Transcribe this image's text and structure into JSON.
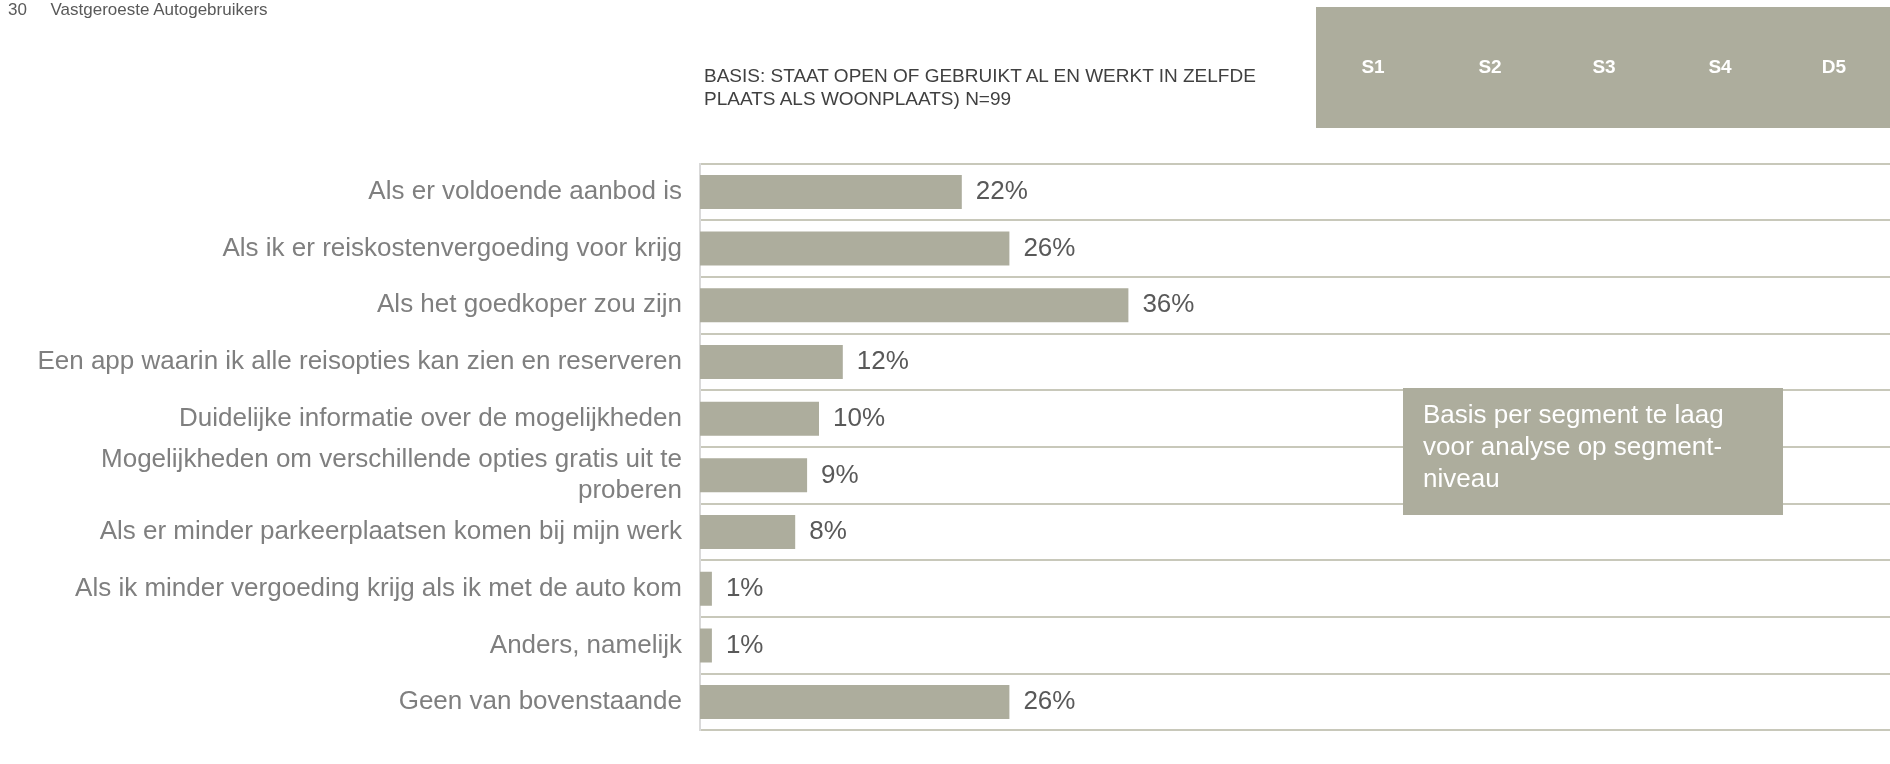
{
  "chart_data": {
    "type": "bar",
    "orientation": "horizontal",
    "title": "Vastgeroeste Autogebruikers",
    "subtitle": "BASIS: STAAT OPEN OF GEBRUIKT AL EN WERKT IN ZELFDE PLAATS ALS WOONPLAATS) N=99",
    "annotations": [
      "30",
      "S1",
      "S2",
      "S3",
      "S4",
      "D5",
      "Basis per segment te laag voor analyse op segment-niveau"
    ],
    "categories": [
      "Als er voldoende aanbod is",
      "Als ik er reiskostenvergoeding voor krijg",
      "Als het goedkoper zou zijn",
      "Een app waarin ik alle reisopties kan zien en reserveren",
      "Duidelijke informatie over de mogelijkheden",
      "Mogelijkheden om verschillende opties gratis uit te proberen",
      "Als er minder parkeerplaatsen komen bij mijn werk",
      "Als ik minder vergoeding krijg als ik met de auto kom",
      "Anders, namelijk",
      "Geen van bovenstaande"
    ],
    "values": [
      22,
      26,
      36,
      12,
      10,
      9,
      8,
      1,
      1,
      26
    ],
    "value_labels": [
      "22%",
      "26%",
      "36%",
      "12%",
      "10%",
      "9%",
      "8%",
      "1%",
      "1%",
      "26%"
    ],
    "color": "#adad9d",
    "xlim": [
      0,
      100
    ],
    "grid": "y",
    "legend": false,
    "tick_labels": "y"
  }
}
